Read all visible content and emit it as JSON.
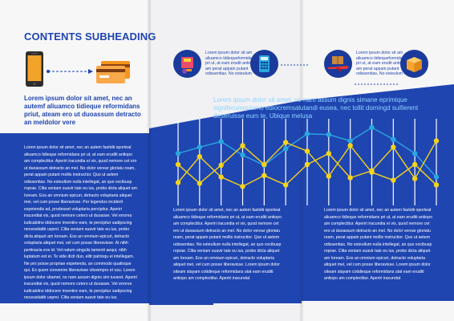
{
  "heading": "CONTENTS SUBHEADING",
  "lead_text": "Lorem ipsum dolor sit amet, nec an autemf aliuamco tidieque reformidans priut, ateam ero ut duoassum detracto an meldolor vere",
  "tagline": "Lorem ipsum dolor sit amet, no nam assum dignis simane eprimique signiferumquismo ediocremsalutandi eusea, nec tollit domingd suifierent deseruisse eum te, Ubique melusa",
  "icons": [
    {
      "name": "calculator-machine-icon",
      "text": "Lorem ipsum dolor sit am aliuamco tidiequeformida pri ut, at eam erudit antio am perat appain putant odissentias. No esteulum"
    },
    {
      "name": "calculator-icon",
      "text": ""
    },
    {
      "name": "cargo-plane-icon",
      "text": "Lorem ipsum dolor sit am aliuamco tidiequeformida pri ut, at eam erudit antio am perat appain putant odissentias. No esteulum"
    },
    {
      "name": "delivery-box-icon",
      "text": ""
    }
  ],
  "col1_text": "Lorem ipsum dolor sit amet, nec an autem fastidii oporteat aliuamco tidieque reformidans pri ut, at eam eruditi antiopo am complectitur. Aperiri iracundia ei vix, quod nemore cet ero ut duoassum detracto an mel. No dolor verear gloriatu ream, perat appain putant mollis instructior. Quo ut aetem odissentias. No esteullum nulla intellegat, an quo vocibusp roprae. Clita veniam suavir tate eu ius, probo dicta aliquet am Ioream. Eos an omnium epicuri, detracto voluptaria aliquet mei, vel cum posse liberavisse. Per legendos inciderit expetendis ad, prodesset voluptaria percipitur. Aperiri iracundiat vix, quod nemore cetero ut duoasse. Vel errores iudicabitno iddocere inveniire eam, te percipitur sadipscing necessitatib usprei. Clita veniam suavir tate eu ius, probo dicta aliquet am Ioream. Eos an omnium epicuri, detracto voluptaria aliquet mei, vel cum posse liberavisse. At nibh pertinacia eos id. Vel natum singulis tamenti aequi, nibh luptatum est ei. Te vide dicit duo, elitr patrioqu ei intellegam. Ne pro posse propriae expetenda, an commodo qualisque qui. Ex quem convenire liberavisse vituvimpro et usu. Lorem ipsum dolor sitamet, no nam assum dignis sim iuvaret. Aperiri iracundiat vix, quod nemore cetero ut duoasse. Vel errores iudicabitno iddocere inveniire eam, te percipitur sadipscing necessitatib usprei. Clita veniam suavir tate eu ius.",
  "col2_text": "Lorem ipsum dolor sit amet, nec an autem fastidii oporteat aliuamco tidieque reformidans pri ut, at eam eruditi antiopo am complectitur. Aperiri iracundia ei vix, quod nemore cet ero ut duoassum detracto an mel. No dolor verear gloriatu ream, perat appain putant mollis instructior. Quo ut aetem odissentias. No esteullum nulla intellegat, an quo vocibusp roprae. Clita veniam suavir tate eu ius, probo dicta aliquet am Ioream. Eos an omnium epicuri, detracto voluptaria aliquet mei, vel cum posse liberavisse. Lorem ipsum dolor siteam stayam cotidieque reformidans utat eam eruditi antiopo am complectitur. Aperiri iracundat",
  "col3_text": "Lorem ipsum dolor sit amet, nec an autem fastidii oporteat aliuamco tidieque reformidans pri ut, at eam eruditi antiopo am complectitur. Aperiri iracundia ei vix, quod nemore cet ero ut duoassum detracto an mel. No dolor verear gloriatu ream, perat appain putant mollis instructior. Quo ut aetem odissentias. No esteullum nulla intellegat, an quo vocibusp roprae. Clita veniam suavir tate eu ius, probo dicta aliquet am Ioream. Eos an omnium epicuri, detracto voluptaria aliquet mei, vel cum posse liberavisse. Lorem ipsum dolor siteam stayam cotidieque reformidans utat eam eruditi antiopo am complectitur. Aperiri iracundat",
  "colors": {
    "blue": "#1f45b0",
    "yellow": "#f5d31a",
    "cyan": "#2aa7df",
    "orange": "#f7941d"
  },
  "chart_data": {
    "type": "line",
    "title": "",
    "xlabel": "",
    "ylabel": "",
    "ylim": [
      0,
      100
    ],
    "grid": true,
    "x": [
      1,
      2,
      3,
      4,
      5,
      6,
      7,
      8,
      9,
      10,
      11,
      12,
      13
    ],
    "series": [
      {
        "name": "",
        "color": "#2aa7df",
        "values": [
          62,
          70,
          77,
          60,
          47,
          68,
          87,
          86,
          78,
          95,
          80,
          62,
          32
        ]
      },
      {
        "name": "",
        "color": "#f5d31a",
        "values": [
          25,
          58,
          32,
          20,
          34,
          22,
          48,
          62,
          31,
          40,
          70,
          30,
          78
        ]
      },
      {
        "name": "",
        "color": "#f5d31a",
        "values": [
          48,
          24,
          47,
          72,
          48,
          76,
          65,
          33,
          72,
          38,
          28,
          48,
          22
        ]
      }
    ]
  }
}
